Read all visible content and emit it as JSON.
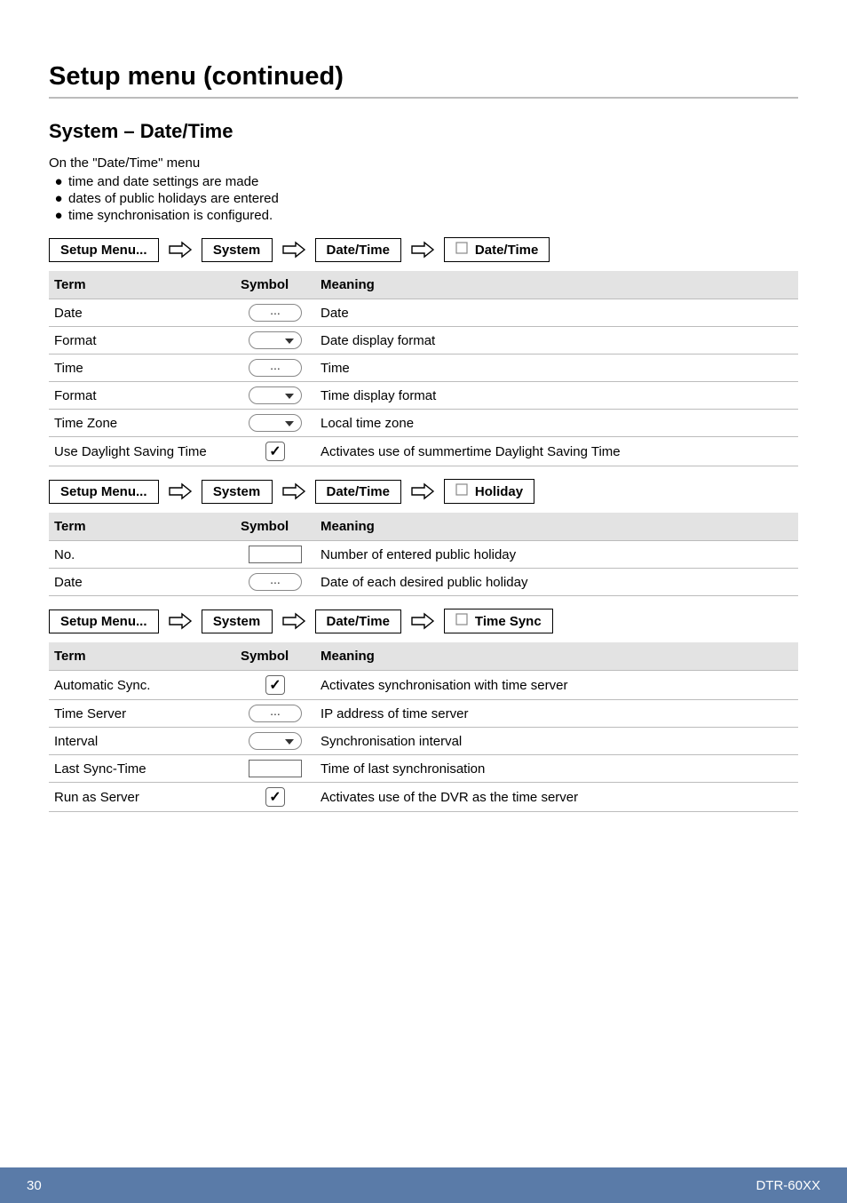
{
  "mainTitle": "Setup menu (continued)",
  "subTitle": "System – Date/Time",
  "introText": "On the \"Date/Time\" menu",
  "bullets": [
    "time and date settings are made",
    "dates of public holidays are entered",
    "time synchronisation is configured."
  ],
  "breadcrumbLabels": {
    "setupMenu": "Setup Menu...",
    "system": "System",
    "dateTime": "Date/Time",
    "holiday": "Holiday",
    "timeSync": "Time Sync"
  },
  "tableHeaders": {
    "term": "Term",
    "symbol": "Symbol",
    "meaning": "Meaning"
  },
  "table1": [
    {
      "term": "Date",
      "symbol": "dots",
      "meaning": "Date"
    },
    {
      "term": "Format",
      "symbol": "dropdown",
      "meaning": "Date display format"
    },
    {
      "term": "Time",
      "symbol": "dots",
      "meaning": "Time"
    },
    {
      "term": "Format",
      "symbol": "dropdown",
      "meaning": "Time display format"
    },
    {
      "term": "Time Zone",
      "symbol": "dropdown",
      "meaning": "Local time zone"
    },
    {
      "term": "Use Daylight Saving Time",
      "symbol": "check",
      "meaning": "Activates use of summertime Daylight Saving Time"
    }
  ],
  "table2": [
    {
      "term": "No.",
      "symbol": "rect",
      "meaning": "Number of entered public holiday"
    },
    {
      "term": "Date",
      "symbol": "dots",
      "meaning": "Date of each desired public holiday"
    }
  ],
  "table3": [
    {
      "term": "Automatic Sync.",
      "symbol": "check",
      "meaning": "Activates synchronisation with time server"
    },
    {
      "term": "Time Server",
      "symbol": "dots",
      "meaning": "IP address of time server"
    },
    {
      "term": "Interval",
      "symbol": "dropdown",
      "meaning": "Synchronisation interval"
    },
    {
      "term": "Last Sync-Time",
      "symbol": "rect",
      "meaning": "Time of last synchronisation"
    },
    {
      "term": "Run as Server",
      "symbol": "check",
      "meaning": "Activates use of the DVR as the time server"
    }
  ],
  "footer": {
    "pageNum": "30",
    "docId": "DTR-60XX"
  },
  "colors": {
    "headerBg": "#e3e3e3",
    "footerBg": "#5a7ba8",
    "border": "#bcbcbc"
  }
}
